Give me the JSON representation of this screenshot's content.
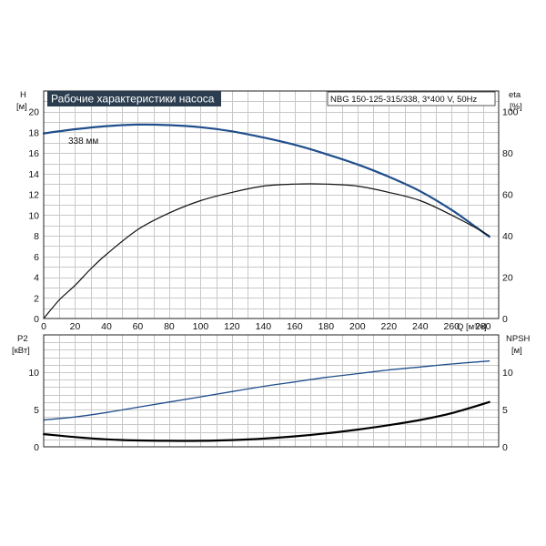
{
  "chart_data": [
    {
      "type": "line",
      "title": "Рабочие характеристики насоса",
      "subtitle": "NBG 150-125-315/338, 3*400 V, 50Hz",
      "xlabel": "Q [м³/ч]",
      "xlim": [
        0,
        290
      ],
      "x_ticks": [
        "0",
        "20",
        "40",
        "60",
        "80",
        "100",
        "120",
        "140",
        "160",
        "180",
        "200",
        "220",
        "240",
        "260",
        "280"
      ],
      "left_axis": {
        "name": "H",
        "unit": "[м]",
        "lim": [
          0,
          22
        ],
        "ticks": [
          "0",
          "2",
          "4",
          "6",
          "8",
          "10",
          "12",
          "14",
          "16",
          "18",
          "20"
        ]
      },
      "right_axis": {
        "name": "eta",
        "unit": "[%]",
        "lim": [
          0,
          110
        ],
        "ticks": [
          "0",
          "20",
          "40",
          "60",
          "80",
          "100"
        ]
      },
      "grid": true,
      "series": [
        {
          "name": "338 мм",
          "axis": "left",
          "color": "#1f4e8c",
          "points": [
            [
              0,
              17.9
            ],
            [
              20,
              18.3
            ],
            [
              40,
              18.6
            ],
            [
              60,
              18.75
            ],
            [
              80,
              18.7
            ],
            [
              100,
              18.5
            ],
            [
              120,
              18.1
            ],
            [
              140,
              17.5
            ],
            [
              160,
              16.8
            ],
            [
              180,
              15.9
            ],
            [
              200,
              14.9
            ],
            [
              220,
              13.7
            ],
            [
              240,
              12.3
            ],
            [
              260,
              10.5
            ],
            [
              275,
              8.9
            ],
            [
              284,
              7.9
            ]
          ]
        },
        {
          "axis": "right",
          "color": "#111111",
          "points": [
            [
              0,
              0
            ],
            [
              10,
              9
            ],
            [
              20,
              16
            ],
            [
              30,
              24
            ],
            [
              40,
              31
            ],
            [
              60,
              43
            ],
            [
              80,
              51
            ],
            [
              100,
              57
            ],
            [
              120,
              61
            ],
            [
              140,
              64
            ],
            [
              160,
              65
            ],
            [
              180,
              65
            ],
            [
              200,
              64
            ],
            [
              220,
              61
            ],
            [
              240,
              57
            ],
            [
              260,
              50
            ],
            [
              275,
              44
            ],
            [
              284,
              40
            ]
          ]
        }
      ]
    },
    {
      "type": "line",
      "xlim": [
        0,
        290
      ],
      "left_axis": {
        "name": "P2",
        "unit": "[кВт]",
        "lim": [
          0,
          15
        ],
        "ticks": [
          "0",
          "5",
          "10"
        ]
      },
      "right_axis": {
        "name": "NPSH",
        "unit": "[м]",
        "lim": [
          0,
          15
        ],
        "ticks": [
          "0",
          "5",
          "10"
        ]
      },
      "grid": true,
      "series": [
        {
          "axis": "left",
          "color": "#1f4e8c",
          "points": [
            [
              0,
              3.6
            ],
            [
              20,
              4.0
            ],
            [
              40,
              4.6
            ],
            [
              60,
              5.3
            ],
            [
              80,
              6.0
            ],
            [
              100,
              6.7
            ],
            [
              120,
              7.4
            ],
            [
              140,
              8.1
            ],
            [
              160,
              8.7
            ],
            [
              180,
              9.3
            ],
            [
              200,
              9.8
            ],
            [
              220,
              10.3
            ],
            [
              240,
              10.7
            ],
            [
              260,
              11.1
            ],
            [
              284,
              11.5
            ]
          ]
        },
        {
          "axis": "right",
          "color": "#000000",
          "points": [
            [
              0,
              1.7
            ],
            [
              20,
              1.3
            ],
            [
              40,
              1.0
            ],
            [
              60,
              0.85
            ],
            [
              80,
              0.8
            ],
            [
              100,
              0.8
            ],
            [
              120,
              0.9
            ],
            [
              140,
              1.1
            ],
            [
              160,
              1.4
            ],
            [
              180,
              1.8
            ],
            [
              200,
              2.3
            ],
            [
              220,
              2.9
            ],
            [
              240,
              3.6
            ],
            [
              260,
              4.5
            ],
            [
              284,
              6.0
            ]
          ]
        }
      ]
    }
  ]
}
